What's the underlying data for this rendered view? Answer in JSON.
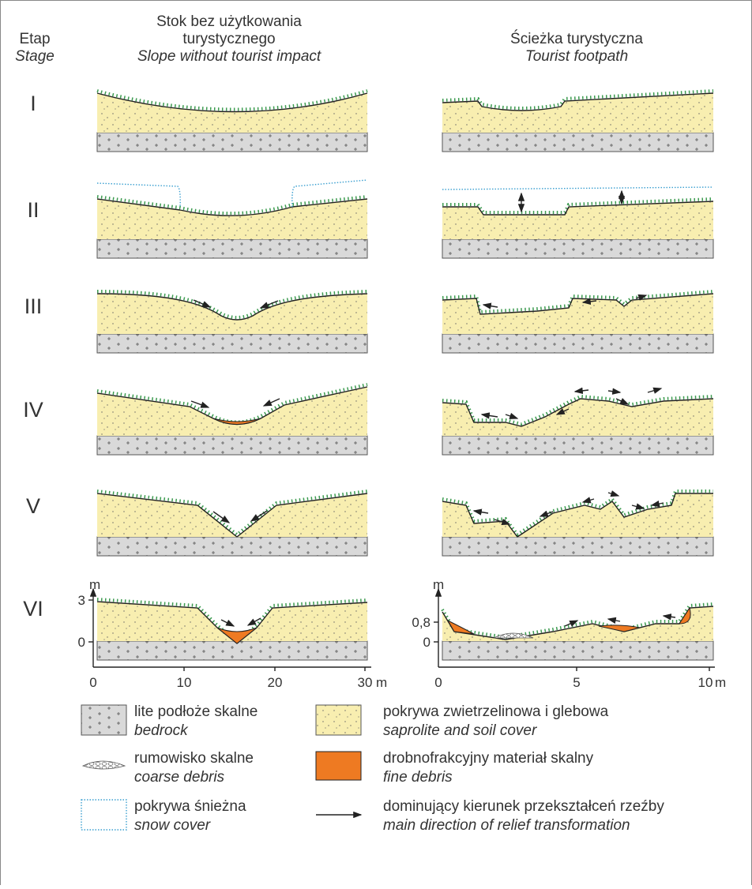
{
  "stage_header": {
    "pl": "Etap",
    "en": "Stage"
  },
  "columns": [
    {
      "pl": [
        "Stok bez użytkowania",
        "turystycznego"
      ],
      "en": "Slope without tourist impact"
    },
    {
      "pl": "Ścieżka turystyczna",
      "en": "Tourist footpath"
    }
  ],
  "stages": [
    "I",
    "II",
    "III",
    "IV",
    "V",
    "VI"
  ],
  "axes": [
    {
      "y_unit": "m",
      "y_ticks": [
        "3",
        "0"
      ],
      "x_ticks": [
        "0",
        "10",
        "20",
        "30"
      ],
      "x_unit": "m"
    },
    {
      "y_unit": "m",
      "y_ticks": [
        "0,8",
        "0"
      ],
      "x_ticks": [
        "0",
        "5",
        "10"
      ],
      "x_unit": "m"
    }
  ],
  "legend": [
    {
      "pl": "lite podłoże skalne",
      "en": "bedrock"
    },
    {
      "pl": "pokrywa zwietrzelinowa i glebowa",
      "en": "saprolite and soil cover"
    },
    {
      "pl": "rumowisko skalne",
      "en": "coarse debris"
    },
    {
      "pl": "drobnofrakcyjny materiał skalny",
      "en": "fine debris"
    },
    {
      "pl": "pokrywa śnieżna",
      "en": "snow cover"
    },
    {
      "pl": "dominujący kierunek przekształceń rzeźby",
      "en": "main direction of relief transformation"
    }
  ]
}
